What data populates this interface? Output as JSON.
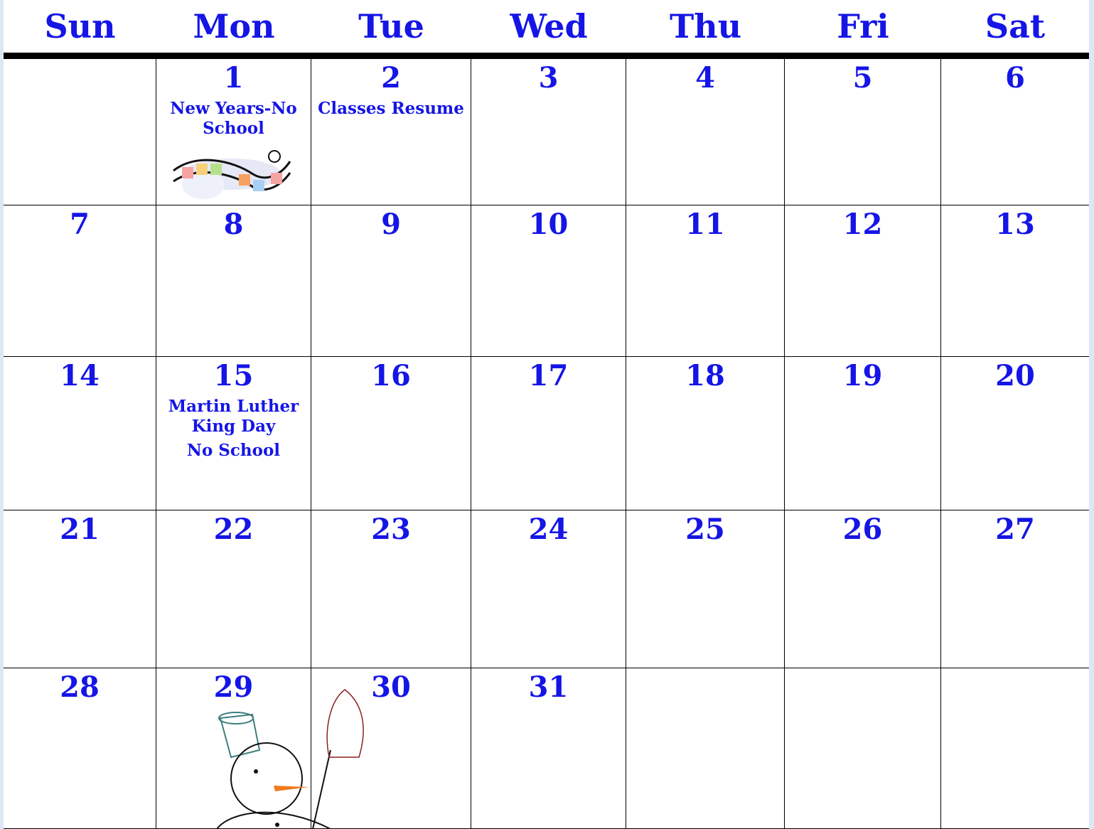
{
  "calendar": {
    "weekdays": [
      "Sun",
      "Mon",
      "Tue",
      "Wed",
      "Thu",
      "Fri",
      "Sat"
    ],
    "weeks": [
      [
        null,
        {
          "day": 1,
          "events": [
            "New Years-No School"
          ]
        },
        {
          "day": 2,
          "events": [
            "Classes Resume"
          ]
        },
        {
          "day": 3
        },
        {
          "day": 4
        },
        {
          "day": 5
        },
        {
          "day": 6
        }
      ],
      [
        {
          "day": 7
        },
        {
          "day": 8
        },
        {
          "day": 9
        },
        {
          "day": 10
        },
        {
          "day": 11
        },
        {
          "day": 12
        },
        {
          "day": 13
        }
      ],
      [
        {
          "day": 14
        },
        {
          "day": 15,
          "events": [
            "Martin Luther King Day",
            "No School"
          ]
        },
        {
          "day": 16
        },
        {
          "day": 17
        },
        {
          "day": 18
        },
        {
          "day": 19
        },
        {
          "day": 20
        }
      ],
      [
        {
          "day": 21
        },
        {
          "day": 22
        },
        {
          "day": 23
        },
        {
          "day": 24
        },
        {
          "day": 25
        },
        {
          "day": 26
        },
        {
          "day": 27
        }
      ],
      [
        {
          "day": 28
        },
        {
          "day": 29
        },
        {
          "day": 30
        },
        {
          "day": 31
        },
        null,
        null,
        null
      ]
    ]
  }
}
